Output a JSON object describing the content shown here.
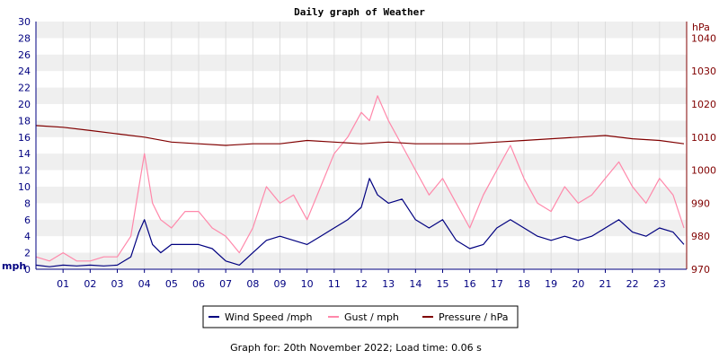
{
  "chart_data": {
    "type": "line",
    "title": "Daily graph of Weather",
    "left_axis": {
      "unit": "mph",
      "min": 0,
      "max": 30,
      "ticks": [
        0,
        2,
        4,
        6,
        8,
        10,
        12,
        14,
        16,
        18,
        20,
        22,
        24,
        26,
        28,
        30
      ]
    },
    "right_axis": {
      "unit": "hPa",
      "min": 970,
      "max": 1045,
      "ticks": [
        970,
        980,
        990,
        1000,
        1010,
        1020,
        1030,
        1040
      ]
    },
    "x_axis": {
      "min": 0,
      "max": 24,
      "tick_labels": [
        "01",
        "02",
        "03",
        "04",
        "05",
        "06",
        "07",
        "08",
        "09",
        "10",
        "11",
        "12",
        "13",
        "14",
        "15",
        "16",
        "17",
        "18",
        "19",
        "20",
        "21",
        "22",
        "23"
      ]
    },
    "grid": true,
    "legend_placement": "bottom-center",
    "legend": [
      {
        "label": "Wind Speed /mph",
        "color": "#000080"
      },
      {
        "label": "Gust / mph",
        "color": "#ff88aa"
      },
      {
        "label": "Pressure / hPa",
        "color": "#800000"
      }
    ],
    "series": [
      {
        "name": "Wind Speed /mph",
        "color": "#000080",
        "axis": "left",
        "x": [
          0,
          0.5,
          1,
          1.5,
          2,
          2.5,
          3,
          3.5,
          3.8,
          4,
          4.3,
          4.6,
          5,
          5.5,
          6,
          6.5,
          7,
          7.5,
          8,
          8.5,
          9,
          9.5,
          10,
          10.5,
          11,
          11.5,
          12,
          12.3,
          12.6,
          13,
          13.5,
          14,
          14.5,
          15,
          15.5,
          16,
          16.5,
          17,
          17.5,
          18,
          18.5,
          19,
          19.5,
          20,
          20.5,
          21,
          21.5,
          22,
          22.5,
          23,
          23.5,
          23.9
        ],
        "y": [
          0.5,
          0.3,
          0.5,
          0.4,
          0.5,
          0.4,
          0.5,
          1.5,
          4.5,
          6,
          3,
          2,
          3,
          3,
          3,
          2.5,
          1,
          0.5,
          2,
          3.5,
          4,
          3.5,
          3,
          4,
          5,
          6,
          7.5,
          11,
          9,
          8,
          8.5,
          6,
          5,
          6,
          3.5,
          2.5,
          3,
          5,
          6,
          5,
          4,
          3.5,
          4,
          3.5,
          4,
          5,
          6,
          4.5,
          4,
          5,
          4.5,
          3
        ]
      },
      {
        "name": "Gust / mph",
        "color": "#ff88aa",
        "axis": "left",
        "x": [
          0,
          0.5,
          1,
          1.5,
          2,
          2.5,
          3,
          3.5,
          3.8,
          4,
          4.3,
          4.6,
          5,
          5.5,
          6,
          6.5,
          7,
          7.5,
          8,
          8.5,
          9,
          9.5,
          10,
          10.5,
          11,
          11.5,
          12,
          12.3,
          12.6,
          13,
          13.5,
          14,
          14.5,
          15,
          15.5,
          16,
          16.5,
          17,
          17.5,
          18,
          18.5,
          19,
          19.5,
          20,
          20.5,
          21,
          21.5,
          22,
          22.5,
          23,
          23.5,
          23.9
        ],
        "y": [
          1.5,
          1,
          2,
          1,
          1,
          1.5,
          1.5,
          4,
          10,
          14,
          8,
          6,
          5,
          7,
          7,
          5,
          4,
          2,
          5,
          10,
          8,
          9,
          6,
          10,
          14,
          16,
          19,
          18,
          21,
          18,
          15,
          12,
          9,
          11,
          8,
          5,
          9,
          12,
          15,
          11,
          8,
          7,
          10,
          8,
          9,
          11,
          13,
          10,
          8,
          11,
          9,
          5
        ]
      },
      {
        "name": "Pressure / hPa",
        "color": "#800000",
        "axis": "right",
        "x": [
          0,
          1,
          2,
          3,
          4,
          5,
          6,
          7,
          8,
          9,
          10,
          11,
          12,
          13,
          14,
          15,
          16,
          17,
          18,
          19,
          20,
          21,
          22,
          23,
          23.9
        ],
        "y": [
          1013.5,
          1013,
          1012,
          1011,
          1010,
          1008.5,
          1008,
          1007.5,
          1008,
          1008,
          1009,
          1008.5,
          1008,
          1008.5,
          1008,
          1008,
          1008,
          1008.5,
          1009,
          1009.5,
          1010,
          1010.5,
          1009.5,
          1009,
          1008
        ]
      }
    ]
  },
  "footer": {
    "text": "Graph for: 20th November 2022; Load time: 0.06 s"
  }
}
